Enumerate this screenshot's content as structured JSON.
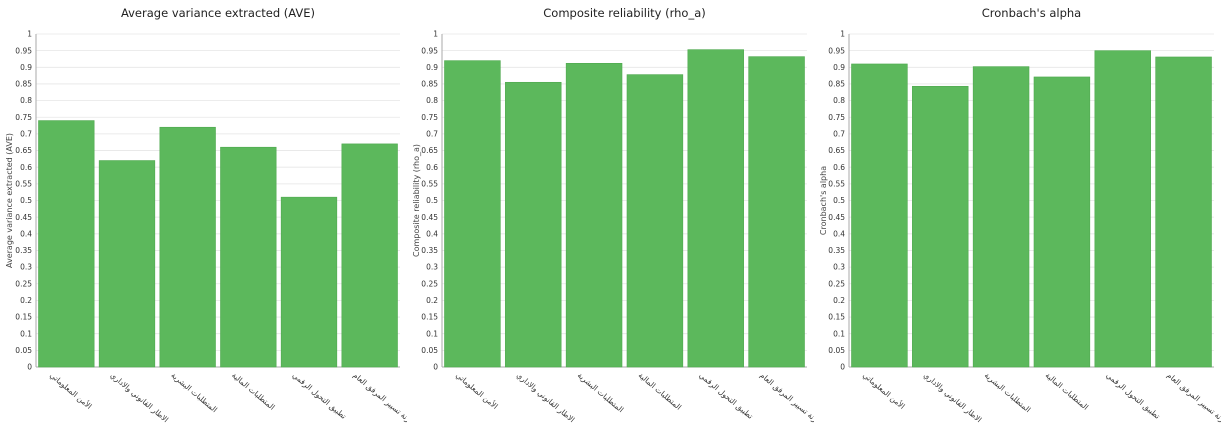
{
  "colors": {
    "bar": "#5cb85c",
    "bar_edge": "#4ea84e",
    "grid": "#e6e6e6",
    "axis": "#aaaaaa"
  },
  "chart_data": [
    {
      "type": "bar",
      "title": "Average variance extracted (AVE)",
      "ylabel": "Average variance extracted (AVE)",
      "xlabel": "",
      "ylim": [
        0,
        1
      ],
      "yticks": [
        "0",
        "0.05",
        "0.1",
        "0.15",
        "0.2",
        "0.25",
        "0.3",
        "0.35",
        "0.4",
        "0.45",
        "0.5",
        "0.55",
        "0.6",
        "0.65",
        "0.7",
        "0.75",
        "0.8",
        "0.85",
        "0.9",
        "0.95",
        "1"
      ],
      "grid": true,
      "categories": [
        "الأمن المعلوماتي",
        "الاطار القانوني والاداري",
        "المتطلبات البشرية",
        "المتطلبات المالية",
        "تطبيق التحول الرقمي",
        "عصرنة تسيير المرفق العام"
      ],
      "values": [
        0.74,
        0.62,
        0.72,
        0.66,
        0.51,
        0.67
      ]
    },
    {
      "type": "bar",
      "title": "Composite reliability (rho_a)",
      "ylabel": "Composite reliability (rho_a)",
      "xlabel": "",
      "ylim": [
        0,
        1
      ],
      "yticks": [
        "0",
        "0.05",
        "0.1",
        "0.15",
        "0.2",
        "0.25",
        "0.3",
        "0.35",
        "0.4",
        "0.45",
        "0.5",
        "0.55",
        "0.6",
        "0.65",
        "0.7",
        "0.75",
        "0.8",
        "0.85",
        "0.9",
        "0.95",
        "1"
      ],
      "grid": true,
      "categories": [
        "الأمن المعلوماتي",
        "الاطار القانوني والاداري",
        "المتطلبات البشرية",
        "المتطلبات المالية",
        "تطبيق التحول الرقمي",
        "عصرنة تسيير المرفق العام"
      ],
      "values": [
        0.92,
        0.855,
        0.912,
        0.878,
        0.953,
        0.932
      ]
    },
    {
      "type": "bar",
      "title": "Cronbach's alpha",
      "ylabel": "Cronbach's alpha",
      "xlabel": "",
      "ylim": [
        0,
        1
      ],
      "yticks": [
        "0",
        "0.05",
        "0.1",
        "0.15",
        "0.2",
        "0.25",
        "0.3",
        "0.35",
        "0.4",
        "0.45",
        "0.5",
        "0.55",
        "0.6",
        "0.65",
        "0.7",
        "0.75",
        "0.8",
        "0.85",
        "0.9",
        "0.95",
        "1"
      ],
      "grid": true,
      "categories": [
        "الأمن المعلوماتي",
        "الاطار القانوني والاداري",
        "المتطلبات البشرية",
        "المتطلبات المالية",
        "تطبيق التحول الرقمي",
        "عصرنة تسيير المرفق العام"
      ],
      "values": [
        0.91,
        0.843,
        0.902,
        0.871,
        0.95,
        0.931
      ]
    }
  ]
}
